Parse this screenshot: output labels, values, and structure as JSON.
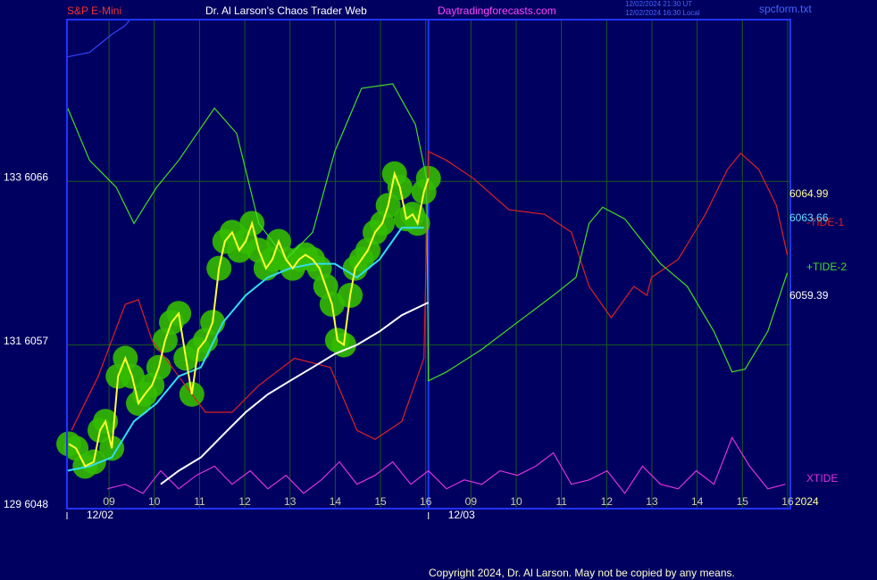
{
  "chart_data": {
    "type": "line",
    "header": {
      "symbol": "S&P E-Mini",
      "site": "Dr. Al Larson's Chaos Trader Web",
      "url": "Daytradingforecasts.com",
      "time_ut": "12/02/2024 21:30 UT",
      "time_local": "12/02/2024 16:30 Local",
      "file": "spcform.txt"
    },
    "copyright": "Copyright 2024, Dr. Al Larson. May not be copied by any means.",
    "year": "2024",
    "xlim": [
      0.07,
      16.06
    ],
    "ylim": [
      6048,
      6074.9
    ],
    "yticks": [
      {
        "value": 6048,
        "label": "129  6048"
      },
      {
        "value": 6057,
        "label": "131  6057"
      },
      {
        "value": 6066,
        "label": "133  6066"
      }
    ],
    "xticks": [
      {
        "value": 1,
        "label": "09"
      },
      {
        "value": 2,
        "label": "10"
      },
      {
        "value": 3,
        "label": "11"
      },
      {
        "value": 4,
        "label": "12"
      },
      {
        "value": 5,
        "label": "13"
      },
      {
        "value": 6,
        "label": "14"
      },
      {
        "value": 7,
        "label": "15"
      },
      {
        "value": 8,
        "label": "16"
      },
      {
        "value": 9,
        "label": "09"
      },
      {
        "value": 10,
        "label": "10"
      },
      {
        "value": 11,
        "label": "11"
      },
      {
        "value": 12,
        "label": "12"
      },
      {
        "value": 13,
        "label": "13"
      },
      {
        "value": 14,
        "label": "14"
      },
      {
        "value": 15,
        "label": "15"
      },
      {
        "value": 16,
        "label": "16"
      }
    ],
    "date_ticks": [
      {
        "value": 0.07,
        "label": "12/02"
      },
      {
        "value": 8.06,
        "label": "12/03"
      }
    ],
    "grid": true,
    "price_labels": [
      {
        "value": 6064.99,
        "color": "#ffff99"
      },
      {
        "value": 6063.66,
        "color": "#66ddff"
      },
      {
        "value": 6059.39,
        "color": "#ffffff"
      }
    ],
    "series": [
      {
        "name": "-TIDE-1",
        "color": "#dd2222",
        "x": [
          0.17,
          0.76,
          1.36,
          1.65,
          1.95,
          2.54,
          3.13,
          3.72,
          4.31,
          5.1,
          5.89,
          6.48,
          6.88,
          7.47,
          7.96,
          8.06,
          8.46,
          9.05,
          9.84,
          10.63,
          11.22,
          11.61,
          12.1,
          12.6,
          12.89,
          12.99,
          13.58,
          14.18,
          14.67,
          14.96,
          15.36,
          15.75,
          15.99
        ],
        "values": [
          6052.31,
          6055.28,
          6059.24,
          6059.49,
          6057.26,
          6055.28,
          6053.3,
          6053.3,
          6054.78,
          6056.27,
          6055.77,
          6052.31,
          6051.81,
          6052.8,
          6056.27,
          6067.65,
          6067.16,
          6066.17,
          6064.44,
          6064.19,
          6063.2,
          6060.23,
          6058.5,
          6060.23,
          6059.73,
          6060.72,
          6061.71,
          6064.19,
          6066.66,
          6067.55,
          6066.66,
          6064.68,
          6061.96
        ]
      },
      {
        "name": "+TIDE-2",
        "color": "#44dd22",
        "x": [
          0.07,
          0.57,
          1.16,
          1.55,
          2.05,
          2.54,
          3.33,
          3.82,
          4.31,
          4.91,
          5.5,
          5.99,
          6.58,
          7.27,
          7.77,
          8.02,
          8.06,
          8.46,
          9.24,
          10.03,
          10.82,
          11.32,
          11.61,
          11.91,
          12.4,
          12.79,
          13.19,
          13.78,
          14.37,
          14.77,
          15.06,
          15.56,
          15.99
        ],
        "values": [
          6070.13,
          6067.16,
          6065.67,
          6063.69,
          6065.67,
          6067.16,
          6070.03,
          6068.64,
          6063.69,
          6061.71,
          6063.2,
          6067.65,
          6071.12,
          6071.37,
          6069.14,
          6066.17,
          6055.03,
          6055.52,
          6056.76,
          6058.25,
          6059.73,
          6060.72,
          6063.69,
          6064.58,
          6063.94,
          6062.7,
          6061.47,
          6060.23,
          6057.75,
          6055.52,
          6055.67,
          6057.75,
          6060.97
        ]
      },
      {
        "name": "XTIDE",
        "color": "#dd33dd",
        "x": [
          0.96,
          1.36,
          1.75,
          2.14,
          2.54,
          2.93,
          3.33,
          3.72,
          4.12,
          4.51,
          4.91,
          5.3,
          5.69,
          6.09,
          6.48,
          6.88,
          7.27,
          7.67,
          8.06,
          8.46,
          8.85,
          9.24,
          9.64,
          10.03,
          10.43,
          10.82,
          11.22,
          11.61,
          12.01,
          12.4,
          12.79,
          13.19,
          13.58,
          13.98,
          14.37,
          14.77,
          15.16,
          15.56,
          15.95
        ],
        "values": [
          6049.09,
          6049.34,
          6048.84,
          6050.08,
          6049.09,
          6049.83,
          6050.33,
          6049.34,
          6050.08,
          6049.09,
          6049.83,
          6048.84,
          6049.58,
          6050.57,
          6049.34,
          6049.83,
          6050.57,
          6049.34,
          6050.08,
          6049.09,
          6049.58,
          6049.34,
          6050.08,
          6049.83,
          6050.33,
          6051.07,
          6049.34,
          6049.58,
          6050.08,
          6048.84,
          6050.33,
          6049.34,
          6049.09,
          6050.08,
          6049.34,
          6051.91,
          6050.33,
          6049.09,
          6049.34
        ]
      },
      {
        "color": "#3344ff",
        "x": [
          0.07,
          0.57,
          1.06,
          1.36,
          1.46
        ],
        "values": [
          6072.85,
          6073.1,
          6074.09,
          6074.58,
          6074.9
        ]
      },
      {
        "color": "#ffffff",
        "x": [
          2.14,
          2.54,
          3.03,
          3.52,
          4.02,
          4.51,
          5.0,
          5.5,
          5.99,
          6.48,
          6.98,
          7.47,
          8.06
        ],
        "values": [
          6049.34,
          6050.08,
          6050.82,
          6052.06,
          6053.3,
          6054.29,
          6055.03,
          6055.77,
          6056.51,
          6057.01,
          6057.75,
          6058.64,
          6059.34
        ]
      },
      {
        "color": "#33ddee",
        "x": [
          0.07,
          0.57,
          1.06,
          1.55,
          2.05,
          2.54,
          3.03,
          3.52,
          4.02,
          4.51,
          5.0,
          5.5,
          5.99,
          6.48,
          6.98,
          7.47,
          7.96
        ],
        "values": [
          6050.08,
          6050.33,
          6050.82,
          6052.8,
          6053.79,
          6055.28,
          6055.77,
          6058.25,
          6059.73,
          6060.72,
          6061.22,
          6061.47,
          6061.47,
          6060.72,
          6061.71,
          6063.45,
          6063.45
        ]
      },
      {
        "color": "#ffff33",
        "bubble_color": "#33bb00",
        "x": [
          0.11,
          0.27,
          0.47,
          0.66,
          0.8,
          0.92,
          1.06,
          1.2,
          1.36,
          1.51,
          1.65,
          1.79,
          1.95,
          2.1,
          2.24,
          2.38,
          2.54,
          2.7,
          2.83,
          2.97,
          3.13,
          3.29,
          3.43,
          3.56,
          3.72,
          3.88,
          4.02,
          4.16,
          4.31,
          4.47,
          4.61,
          4.75,
          4.91,
          5.06,
          5.2,
          5.34,
          5.5,
          5.65,
          5.79,
          5.93,
          6.05,
          6.19,
          6.33,
          6.44,
          6.58,
          6.72,
          6.88,
          7.04,
          7.17,
          7.31,
          7.43,
          7.57,
          7.71,
          7.82,
          7.96,
          8.06
        ],
        "values": [
          6051.56,
          6051.32,
          6050.33,
          6050.57,
          6052.31,
          6052.8,
          6051.32,
          6055.28,
          6056.27,
          6055.28,
          6053.79,
          6054.29,
          6054.78,
          6055.77,
          6057.26,
          6058.25,
          6058.74,
          6056.27,
          6054.29,
          6056.76,
          6057.26,
          6058.25,
          6061.22,
          6062.7,
          6063.2,
          6062.21,
          6062.7,
          6063.69,
          6062.21,
          6061.22,
          6061.71,
          6062.7,
          6061.71,
          6061.22,
          6061.71,
          6061.96,
          6061.71,
          6061.22,
          6060.23,
          6059.24,
          6057.26,
          6057.01,
          6059.73,
          6061.22,
          6061.71,
          6062.21,
          6063.2,
          6063.69,
          6064.68,
          6066.42,
          6065.67,
          6063.94,
          6064.19,
          6063.69,
          6065.43,
          6066.17
        ]
      }
    ]
  }
}
